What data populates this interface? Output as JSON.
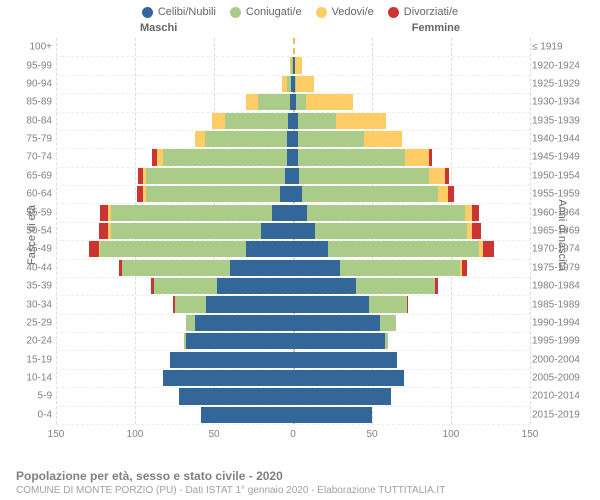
{
  "legend": {
    "items": [
      {
        "label": "Celibi/Nubili",
        "color": "#336699"
      },
      {
        "label": "Coniugati/e",
        "color": "#aacc88"
      },
      {
        "label": "Vedovi/e",
        "color": "#ffcc66"
      },
      {
        "label": "Divorziati/e",
        "color": "#cc3333"
      }
    ]
  },
  "gender_labels": {
    "male": "Maschi",
    "female": "Femmine"
  },
  "y_axis_left_title": "Fasce di età",
  "y_axis_right_title": "Anni di nascita",
  "footer": {
    "title": "Popolazione per età, sesso e stato civile - 2020",
    "sub": "COMUNE DI MONTE PORZIO (PU) - Dati ISTAT 1° gennaio 2020 - Elaborazione TUTTITALIA.IT"
  },
  "chart": {
    "type": "population-pyramid",
    "xlim": 150,
    "xticks": [
      -150,
      -100,
      -50,
      0,
      50,
      100,
      150
    ],
    "xtick_labels": [
      "150",
      "100",
      "50",
      "0",
      "50",
      "100",
      "150"
    ],
    "bar_gap_ratio": 0.12,
    "background_color": "#ffffff",
    "grid_color": "#e6e6e6",
    "categories": [
      {
        "age": "100+",
        "birth": "≤ 1919"
      },
      {
        "age": "95-99",
        "birth": "1920-1924"
      },
      {
        "age": "90-94",
        "birth": "1925-1929"
      },
      {
        "age": "85-89",
        "birth": "1930-1934"
      },
      {
        "age": "80-84",
        "birth": "1935-1939"
      },
      {
        "age": "75-79",
        "birth": "1940-1944"
      },
      {
        "age": "70-74",
        "birth": "1945-1949"
      },
      {
        "age": "65-69",
        "birth": "1950-1954"
      },
      {
        "age": "60-64",
        "birth": "1955-1959"
      },
      {
        "age": "55-59",
        "birth": "1960-1964"
      },
      {
        "age": "50-54",
        "birth": "1965-1969"
      },
      {
        "age": "45-49",
        "birth": "1970-1974"
      },
      {
        "age": "40-44",
        "birth": "1975-1979"
      },
      {
        "age": "35-39",
        "birth": "1980-1984"
      },
      {
        "age": "30-34",
        "birth": "1985-1989"
      },
      {
        "age": "25-29",
        "birth": "1990-1994"
      },
      {
        "age": "20-24",
        "birth": "1995-1999"
      },
      {
        "age": "15-19",
        "birth": "2000-2004"
      },
      {
        "age": "10-14",
        "birth": "2005-2009"
      },
      {
        "age": "5-9",
        "birth": "2010-2014"
      },
      {
        "age": "0-4",
        "birth": "2015-2019"
      }
    ],
    "male": [
      {
        "single": 0,
        "married": 0,
        "widowed": 0,
        "divorced": 0
      },
      {
        "single": 0,
        "married": 1,
        "widowed": 1,
        "divorced": 0
      },
      {
        "single": 1,
        "married": 3,
        "widowed": 3,
        "divorced": 0
      },
      {
        "single": 2,
        "married": 20,
        "widowed": 8,
        "divorced": 0
      },
      {
        "single": 3,
        "married": 40,
        "widowed": 8,
        "divorced": 0
      },
      {
        "single": 4,
        "married": 52,
        "widowed": 6,
        "divorced": 0
      },
      {
        "single": 4,
        "married": 78,
        "widowed": 4,
        "divorced": 3
      },
      {
        "single": 5,
        "married": 88,
        "widowed": 2,
        "divorced": 3
      },
      {
        "single": 8,
        "married": 85,
        "widowed": 2,
        "divorced": 4
      },
      {
        "single": 13,
        "married": 102,
        "widowed": 2,
        "divorced": 5
      },
      {
        "single": 20,
        "married": 95,
        "widowed": 2,
        "divorced": 6
      },
      {
        "single": 30,
        "married": 92,
        "widowed": 1,
        "divorced": 6
      },
      {
        "single": 40,
        "married": 68,
        "widowed": 0,
        "divorced": 2
      },
      {
        "single": 48,
        "married": 40,
        "widowed": 0,
        "divorced": 2
      },
      {
        "single": 55,
        "married": 20,
        "widowed": 0,
        "divorced": 1
      },
      {
        "single": 62,
        "married": 6,
        "widowed": 0,
        "divorced": 0
      },
      {
        "single": 68,
        "married": 1,
        "widowed": 0,
        "divorced": 0
      },
      {
        "single": 78,
        "married": 0,
        "widowed": 0,
        "divorced": 0
      },
      {
        "single": 82,
        "married": 0,
        "widowed": 0,
        "divorced": 0
      },
      {
        "single": 72,
        "married": 0,
        "widowed": 0,
        "divorced": 0
      },
      {
        "single": 58,
        "married": 0,
        "widowed": 0,
        "divorced": 0
      }
    ],
    "female": [
      {
        "single": 0,
        "married": 0,
        "widowed": 0,
        "divorced": 0
      },
      {
        "single": 1,
        "married": 0,
        "widowed": 5,
        "divorced": 0
      },
      {
        "single": 1,
        "married": 1,
        "widowed": 11,
        "divorced": 0
      },
      {
        "single": 2,
        "married": 6,
        "widowed": 30,
        "divorced": 0
      },
      {
        "single": 3,
        "married": 24,
        "widowed": 32,
        "divorced": 0
      },
      {
        "single": 3,
        "married": 42,
        "widowed": 24,
        "divorced": 0
      },
      {
        "single": 3,
        "married": 68,
        "widowed": 15,
        "divorced": 2
      },
      {
        "single": 4,
        "married": 82,
        "widowed": 10,
        "divorced": 3
      },
      {
        "single": 6,
        "married": 86,
        "widowed": 6,
        "divorced": 4
      },
      {
        "single": 9,
        "married": 100,
        "widowed": 4,
        "divorced": 5
      },
      {
        "single": 14,
        "married": 96,
        "widowed": 3,
        "divorced": 6
      },
      {
        "single": 22,
        "married": 96,
        "widowed": 2,
        "divorced": 7
      },
      {
        "single": 30,
        "married": 76,
        "widowed": 1,
        "divorced": 3
      },
      {
        "single": 40,
        "married": 50,
        "widowed": 0,
        "divorced": 2
      },
      {
        "single": 48,
        "married": 24,
        "widowed": 0,
        "divorced": 1
      },
      {
        "single": 55,
        "married": 10,
        "widowed": 0,
        "divorced": 0
      },
      {
        "single": 58,
        "married": 2,
        "widowed": 0,
        "divorced": 0
      },
      {
        "single": 66,
        "married": 0,
        "widowed": 0,
        "divorced": 0
      },
      {
        "single": 70,
        "married": 0,
        "widowed": 0,
        "divorced": 0
      },
      {
        "single": 62,
        "married": 0,
        "widowed": 0,
        "divorced": 0
      },
      {
        "single": 50,
        "married": 0,
        "widowed": 0,
        "divorced": 0
      }
    ]
  }
}
